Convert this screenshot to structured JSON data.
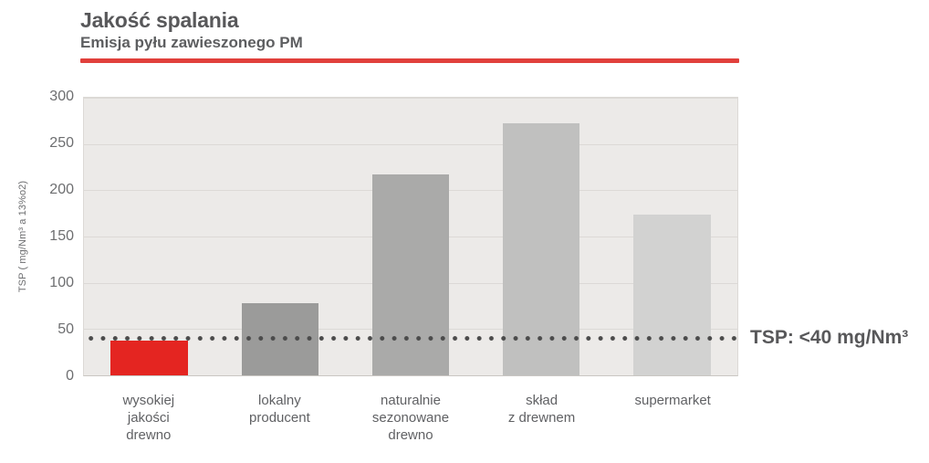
{
  "header": {
    "title": "Jakość spalania",
    "subtitle": "Emisja pyłu zawieszonego PM",
    "divider_color": "#e1403c"
  },
  "chart_data": {
    "type": "bar",
    "title": "Jakość spalania",
    "subtitle": "Emisja pyłu zawieszonego PM",
    "categories": [
      "wysokiej\njakości\ndrewno",
      "lokalny\nproducent",
      "naturalnie\nsezonowane\ndrewno",
      "skład\nz drewnem",
      "supermarket"
    ],
    "values": [
      38,
      78,
      217,
      272,
      174
    ],
    "bar_colors": [
      "#e42521",
      "#9b9b9a",
      "#aaaaa9",
      "#c0c0bf",
      "#d2d2d1"
    ],
    "xlabel": "",
    "ylabel": "TSP ( mg/Nm³ a 13%o2)",
    "yticks": [
      0,
      50,
      100,
      150,
      200,
      250,
      300
    ],
    "ylim": [
      0,
      300
    ],
    "grid": "horizontal",
    "legend": "none",
    "plot_bg_color": "#eceae8",
    "grid_color": "#dcd9d6",
    "threshold": {
      "value": 40,
      "label": "TSP: <40 mg/Nm³",
      "line_color": "#4b4b4b",
      "style": "dotted"
    }
  }
}
